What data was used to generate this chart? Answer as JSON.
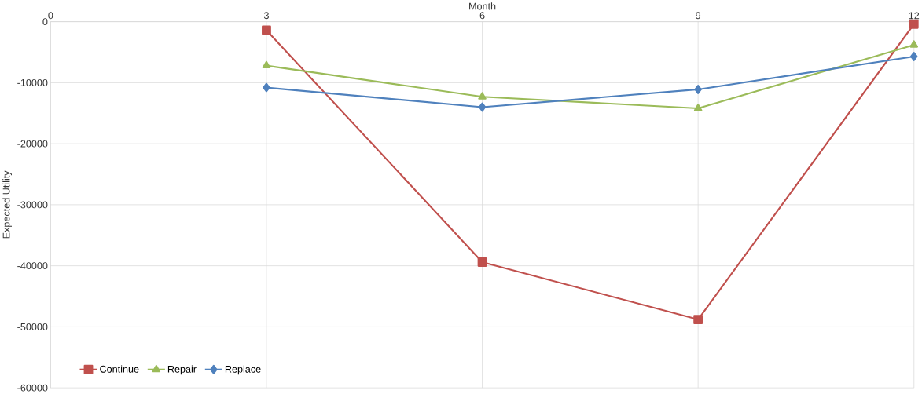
{
  "chart_data": {
    "type": "line",
    "xlabel": "Month",
    "ylabel": "Expected Utility",
    "x": [
      3,
      6,
      9,
      12
    ],
    "xlim": [
      0,
      12
    ],
    "xticks": [
      0,
      3,
      6,
      9,
      12
    ],
    "ylim": [
      -60000,
      0
    ],
    "yticks": [
      -60000,
      -50000,
      -40000,
      -30000,
      -20000,
      -10000,
      0
    ],
    "grid": true,
    "legend": "bottom left",
    "line_style": "solid",
    "series": [
      {
        "name": "Continue",
        "color": "#c0504d",
        "marker": "square",
        "values": [
          -1400,
          -39400,
          -48800,
          -400
        ]
      },
      {
        "name": "Repair",
        "color": "#9bbb59",
        "marker": "triangle",
        "values": [
          -7200,
          -12300,
          -14200,
          -3800
        ]
      },
      {
        "name": "Replace",
        "color": "#4f81bd",
        "marker": "diamond",
        "values": [
          -10800,
          -14000,
          -11100,
          -5700
        ]
      }
    ]
  }
}
